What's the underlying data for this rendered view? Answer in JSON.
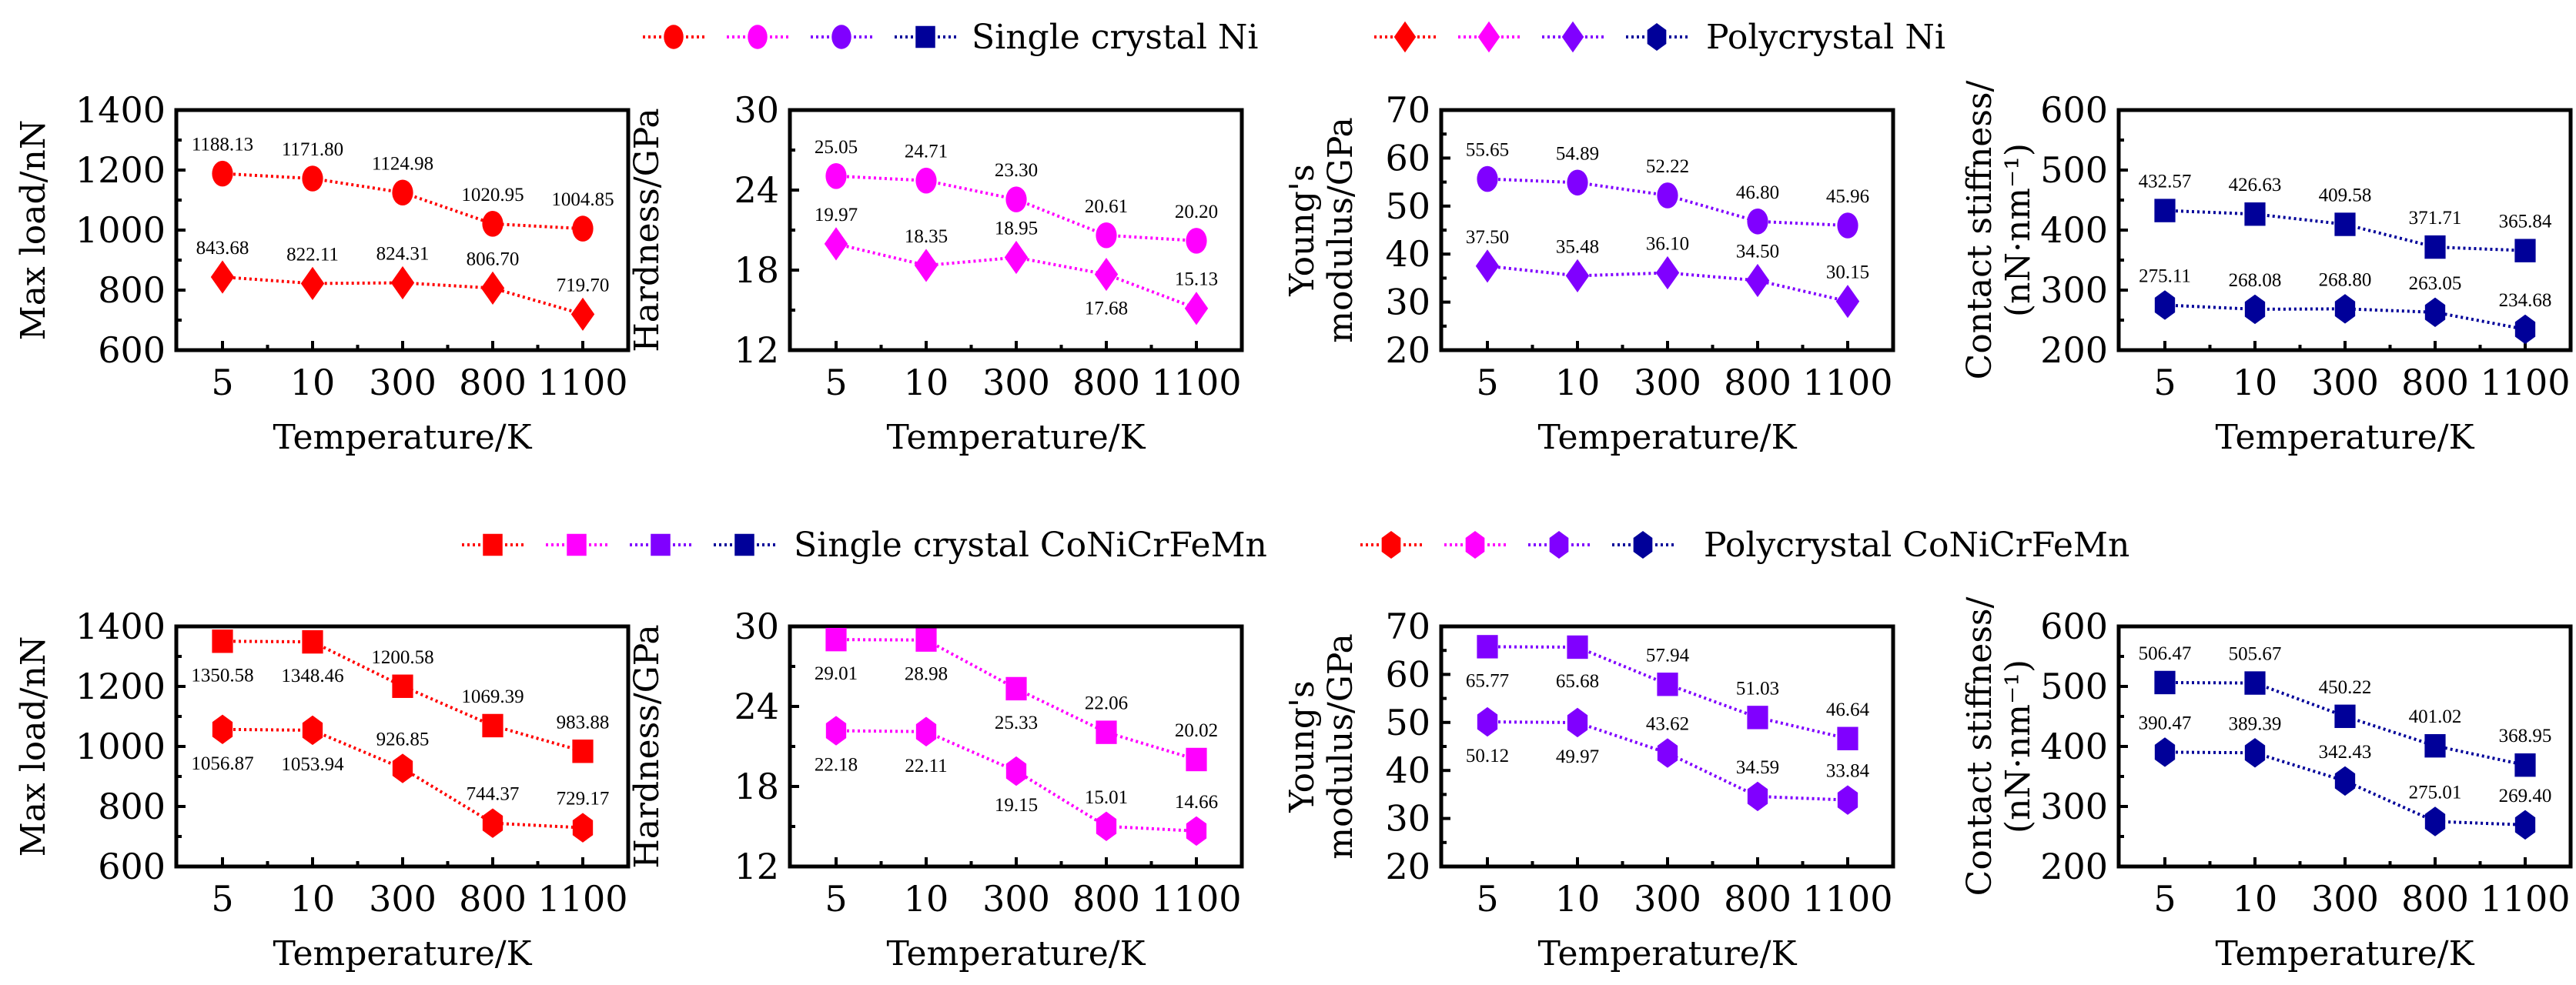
{
  "legends": [
    {
      "row": 0,
      "groups": [
        {
          "label": "Single crystal Ni",
          "marker": "circle-then-square",
          "markers": [
            "circle",
            "circle",
            "circle",
            "square"
          ],
          "colors": [
            "#ff0000",
            "#ff00ff",
            "#8000ff",
            "#000099"
          ]
        },
        {
          "label": "Polycrystal Ni",
          "markers": [
            "diamond",
            "diamond",
            "diamond",
            "hexagon"
          ],
          "colors": [
            "#ff0000",
            "#ff00ff",
            "#8000ff",
            "#000099"
          ]
        }
      ]
    },
    {
      "row": 1,
      "groups": [
        {
          "label": "Single crystal CoNiCrFeMn",
          "markers": [
            "square",
            "square",
            "square",
            "square"
          ],
          "colors": [
            "#ff0000",
            "#ff00ff",
            "#8000ff",
            "#000099"
          ]
        },
        {
          "label": "Polycrystal CoNiCrFeMn",
          "markers": [
            "hexagon",
            "hexagon",
            "hexagon",
            "hexagon"
          ],
          "colors": [
            "#ff0000",
            "#ff00ff",
            "#8000ff",
            "#000099"
          ]
        }
      ]
    }
  ],
  "chart_data": [
    {
      "type": "line",
      "row": 0,
      "col": 0,
      "categories": [
        "5",
        "10",
        "300",
        "800",
        "1100"
      ],
      "xlabel": "Temperature/K",
      "ylabel": [
        "Max load/nN"
      ],
      "ylim": [
        600,
        1400
      ],
      "yticks": [
        600,
        800,
        1000,
        1200,
        1400
      ],
      "series": [
        {
          "name": "Single crystal Ni",
          "marker": "circle",
          "color": "#ff0000",
          "values": [
            1188.13,
            1171.8,
            1124.98,
            1020.95,
            1004.85
          ],
          "labels": [
            "1188.13",
            "1171.80",
            "1124.98",
            "1020.95",
            "1004.85"
          ],
          "label_pos": [
            "above",
            "above",
            "above",
            "above",
            "above"
          ]
        },
        {
          "name": "Polycrystal Ni",
          "marker": "diamond",
          "color": "#ff0000",
          "values": [
            843.68,
            822.11,
            824.31,
            806.7,
            719.7
          ],
          "labels": [
            "843.68",
            "822.11",
            "824.31",
            "806.70",
            "719.70"
          ],
          "label_pos": [
            "above",
            "above",
            "above",
            "above",
            "above"
          ]
        }
      ]
    },
    {
      "type": "line",
      "row": 0,
      "col": 1,
      "categories": [
        "5",
        "10",
        "300",
        "800",
        "1100"
      ],
      "xlabel": "Temperature/K",
      "ylabel": [
        "Hardness/GPa"
      ],
      "ylim": [
        12,
        30
      ],
      "yticks": [
        12,
        18,
        24,
        30
      ],
      "series": [
        {
          "name": "Single crystal Ni",
          "marker": "circle",
          "color": "#ff00ff",
          "values": [
            25.05,
            24.71,
            23.3,
            20.61,
            20.2
          ],
          "labels": [
            "25.05",
            "24.71",
            "23.30",
            "20.61",
            "20.20"
          ],
          "label_pos": [
            "above",
            "above",
            "above",
            "above",
            "above"
          ]
        },
        {
          "name": "Polycrystal Ni",
          "marker": "diamond",
          "color": "#ff00ff",
          "values": [
            19.97,
            18.35,
            18.95,
            17.68,
            15.13
          ],
          "labels": [
            "19.97",
            "18.35",
            "18.95",
            "17.68",
            "15.13"
          ],
          "label_pos": [
            "above",
            "above",
            "above",
            "below",
            "above"
          ]
        }
      ]
    },
    {
      "type": "line",
      "row": 0,
      "col": 2,
      "categories": [
        "5",
        "10",
        "300",
        "800",
        "1100"
      ],
      "xlabel": "Temperature/K",
      "ylabel": [
        "Young's",
        "modulus/GPa"
      ],
      "ylim": [
        20,
        70
      ],
      "yticks": [
        20,
        30,
        40,
        50,
        60,
        70
      ],
      "series": [
        {
          "name": "Single crystal Ni",
          "marker": "circle",
          "color": "#8000ff",
          "values": [
            55.65,
            54.89,
            52.22,
            46.8,
            45.96
          ],
          "labels": [
            "55.65",
            "54.89",
            "52.22",
            "46.80",
            "45.96"
          ],
          "label_pos": [
            "above",
            "above",
            "above",
            "above",
            "above"
          ]
        },
        {
          "name": "Polycrystal Ni",
          "marker": "diamond",
          "color": "#8000ff",
          "values": [
            37.5,
            35.48,
            36.1,
            34.5,
            30.15
          ],
          "labels": [
            "37.50",
            "35.48",
            "36.10",
            "34.50",
            "30.15"
          ],
          "label_pos": [
            "above",
            "above",
            "above",
            "above",
            "above"
          ]
        }
      ]
    },
    {
      "type": "line",
      "row": 0,
      "col": 3,
      "categories": [
        "5",
        "10",
        "300",
        "800",
        "1100"
      ],
      "xlabel": "Temperature/K",
      "ylabel": [
        "Contact stiffness/",
        "(nN·nm⁻¹)"
      ],
      "ylim": [
        200,
        600
      ],
      "yticks": [
        200,
        300,
        400,
        500,
        600
      ],
      "series": [
        {
          "name": "Single crystal Ni",
          "marker": "square",
          "color": "#000099",
          "values": [
            432.57,
            426.63,
            409.58,
            371.71,
            365.84
          ],
          "labels": [
            "432.57",
            "426.63",
            "409.58",
            "371.71",
            "365.84"
          ],
          "label_pos": [
            "above",
            "above",
            "above",
            "above",
            "above"
          ]
        },
        {
          "name": "Polycrystal Ni",
          "marker": "hexagon",
          "color": "#000099",
          "values": [
            275.11,
            268.08,
            268.8,
            263.05,
            234.68
          ],
          "labels": [
            "275.11",
            "268.08",
            "268.80",
            "263.05",
            "234.68"
          ],
          "label_pos": [
            "above",
            "above",
            "above",
            "above",
            "above"
          ]
        }
      ]
    },
    {
      "type": "line",
      "row": 1,
      "col": 0,
      "categories": [
        "5",
        "10",
        "300",
        "800",
        "1100"
      ],
      "xlabel": "Temperature/K",
      "ylabel": [
        "Max load/nN"
      ],
      "ylim": [
        600,
        1400
      ],
      "yticks": [
        600,
        800,
        1000,
        1200,
        1400
      ],
      "series": [
        {
          "name": "Single crystal CoNiCrFeMn",
          "marker": "square",
          "color": "#ff0000",
          "values": [
            1350.58,
            1348.46,
            1200.58,
            1069.39,
            983.88
          ],
          "labels": [
            "1350.58",
            "1348.46",
            "1200.58",
            "1069.39",
            "983.88"
          ],
          "label_pos": [
            "below",
            "below",
            "above",
            "above",
            "above"
          ]
        },
        {
          "name": "Polycrystal CoNiCrFeMn",
          "marker": "hexagon",
          "color": "#ff0000",
          "values": [
            1056.87,
            1053.94,
            926.85,
            744.37,
            729.17
          ],
          "labels": [
            "1056.87",
            "1053.94",
            "926.85",
            "744.37",
            "729.17"
          ],
          "label_pos": [
            "below",
            "below",
            "above",
            "above",
            "above"
          ]
        }
      ]
    },
    {
      "type": "line",
      "row": 1,
      "col": 1,
      "categories": [
        "5",
        "10",
        "300",
        "800",
        "1100"
      ],
      "xlabel": "Temperature/K",
      "ylabel": [
        "Hardness/GPa"
      ],
      "ylim": [
        12,
        30
      ],
      "yticks": [
        12,
        18,
        24,
        30
      ],
      "series": [
        {
          "name": "Single crystal CoNiCrFeMn",
          "marker": "square",
          "color": "#ff00ff",
          "values": [
            29.01,
            28.98,
            25.33,
            22.06,
            20.02
          ],
          "labels": [
            "29.01",
            "28.98",
            "25.33",
            "22.06",
            "20.02"
          ],
          "label_pos": [
            "below",
            "below",
            "below",
            "above",
            "above"
          ]
        },
        {
          "name": "Polycrystal CoNiCrFeMn",
          "marker": "hexagon",
          "color": "#ff00ff",
          "values": [
            22.18,
            22.11,
            19.15,
            15.01,
            14.66
          ],
          "labels": [
            "22.18",
            "22.11",
            "19.15",
            "15.01",
            "14.66"
          ],
          "label_pos": [
            "below",
            "below",
            "below",
            "above",
            "above"
          ]
        }
      ]
    },
    {
      "type": "line",
      "row": 1,
      "col": 2,
      "categories": [
        "5",
        "10",
        "300",
        "800",
        "1100"
      ],
      "xlabel": "Temperature/K",
      "ylabel": [
        "Young's",
        "modulus/GPa"
      ],
      "ylim": [
        20,
        70
      ],
      "yticks": [
        20,
        30,
        40,
        50,
        60,
        70
      ],
      "series": [
        {
          "name": "Single crystal CoNiCrFeMn",
          "marker": "square",
          "color": "#8000ff",
          "values": [
            65.77,
            65.68,
            57.94,
            51.03,
            46.64
          ],
          "labels": [
            "65.77",
            "65.68",
            "57.94",
            "51.03",
            "46.64"
          ],
          "label_pos": [
            "below",
            "below",
            "above",
            "above",
            "above"
          ]
        },
        {
          "name": "Polycrystal CoNiCrFeMn",
          "marker": "hexagon",
          "color": "#8000ff",
          "values": [
            50.12,
            49.97,
            43.62,
            34.59,
            33.84
          ],
          "labels": [
            "50.12",
            "49.97",
            "43.62",
            "34.59",
            "33.84"
          ],
          "label_pos": [
            "below",
            "below",
            "above",
            "above",
            "above"
          ]
        }
      ]
    },
    {
      "type": "line",
      "row": 1,
      "col": 3,
      "categories": [
        "5",
        "10",
        "300",
        "800",
        "1100"
      ],
      "xlabel": "Temperature/K",
      "ylabel": [
        "Contact stiffness/",
        "(nN·nm⁻¹)"
      ],
      "ylim": [
        200,
        600
      ],
      "yticks": [
        200,
        300,
        400,
        500,
        600
      ],
      "series": [
        {
          "name": "Single crystal CoNiCrFeMn",
          "marker": "square",
          "color": "#000099",
          "values": [
            506.47,
            505.67,
            450.22,
            401.02,
            368.95
          ],
          "labels": [
            "506.47",
            "505.67",
            "450.22",
            "401.02",
            "368.95"
          ],
          "label_pos": [
            "above",
            "above",
            "above",
            "above",
            "above"
          ]
        },
        {
          "name": "Polycrystal CoNiCrFeMn",
          "marker": "hexagon",
          "color": "#000099",
          "values": [
            390.47,
            389.39,
            342.43,
            275.01,
            269.4
          ],
          "labels": [
            "390.47",
            "389.39",
            "342.43",
            "275.01",
            "269.40"
          ],
          "label_pos": [
            "above",
            "above",
            "above",
            "above",
            "above"
          ]
        }
      ]
    }
  ]
}
